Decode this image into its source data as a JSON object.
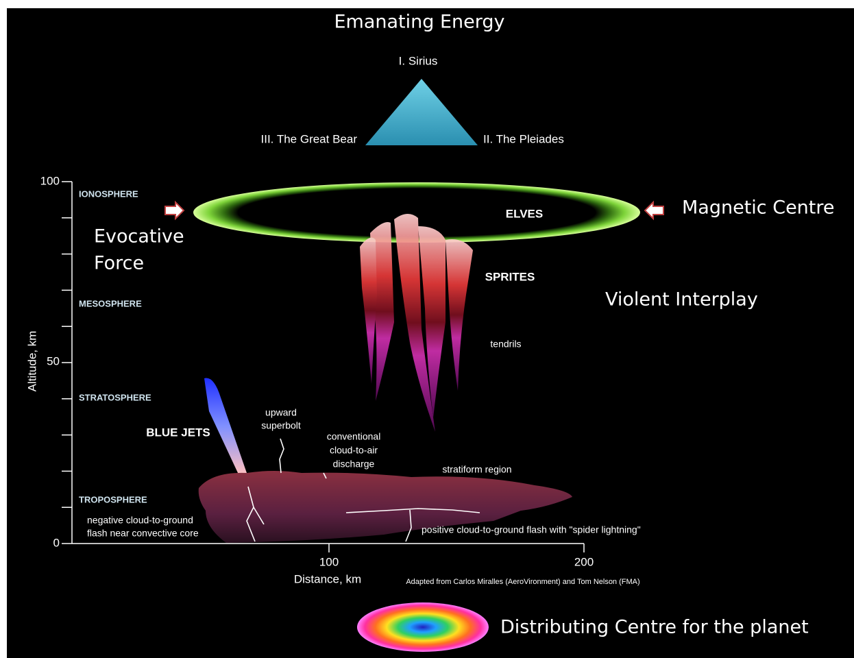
{
  "header": {
    "title": "Emanating Energy"
  },
  "triangle": {
    "top": "I. Sirius",
    "left": "III. The Great Bear",
    "right": "II. The Pleiades"
  },
  "layers": [
    "IONOSPHERE",
    "MESOSPHERE",
    "STRATOSPHERE",
    "TROPOSPHERE"
  ],
  "annotations": {
    "evocative_force": [
      "Evocative",
      "Force"
    ],
    "magnetic_centre": "Magnetic Centre",
    "violent_interplay": "Violent Interplay",
    "distributing_centre": "Distributing Centre for the planet"
  },
  "phenomena": {
    "elves": "ELVES",
    "sprites": "SPRITES",
    "tendrils": "tendrils",
    "blue_jets": "BLUE JETS",
    "superbolt": [
      "upward",
      "superbolt"
    ],
    "cloud_to_air": [
      "conventional",
      "cloud-to-air",
      "discharge"
    ],
    "stratiform": "stratiform region",
    "negative_flash": [
      "negative cloud-to-ground",
      "flash near convective core"
    ],
    "positive_flash": "positive cloud-to-ground flash with \"spider lightning\""
  },
  "axes": {
    "y_label": "Altitude, km",
    "y_ticks": [
      100,
      50,
      0
    ],
    "x_label": "Distance, km",
    "x_ticks": [
      100,
      200
    ]
  },
  "credit": "Adapted from Carlos Miralles (AeroVironment) and Tom Nelson (FMA)"
}
